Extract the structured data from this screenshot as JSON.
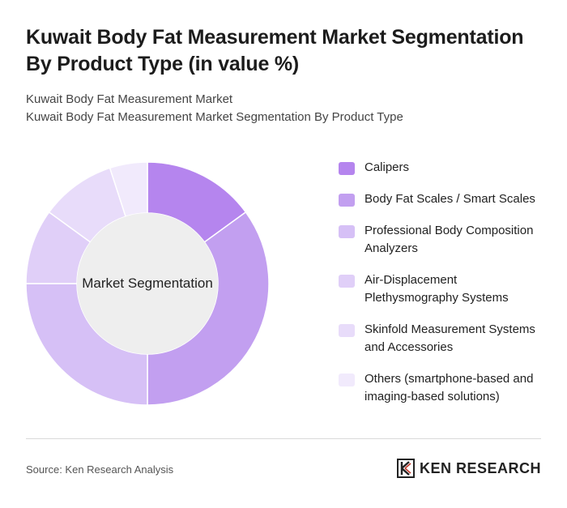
{
  "title": "Kuwait Body Fat Measurement Market Segmentation By Product Type (in value %)",
  "subtitle_line1": "Kuwait Body Fat Measurement Market",
  "subtitle_line2": "Kuwait Body Fat Measurement Market Segmentation By Product Type",
  "center_label": "Market Segmentation",
  "source": "Source: Ken Research Analysis",
  "logo": {
    "brand": "KEN RESEARCH"
  },
  "chart_data": {
    "type": "pie",
    "style": "donut",
    "title": "Market Segmentation",
    "legend_position": "right",
    "categories": [
      "Calipers",
      "Body Fat Scales / Smart Scales",
      "Professional Body Composition Analyzers",
      "Air-Displacement Plethysmography Systems",
      "Skinfold Measurement Systems and Accessories",
      "Others (smartphone-based and imaging-based solutions)"
    ],
    "values": [
      15,
      35,
      25,
      10,
      10,
      5
    ],
    "colors": [
      "#b585ee",
      "#c29ff0",
      "#d6c0f6",
      "#e0cff8",
      "#e8dcfa",
      "#f1eafc"
    ]
  }
}
